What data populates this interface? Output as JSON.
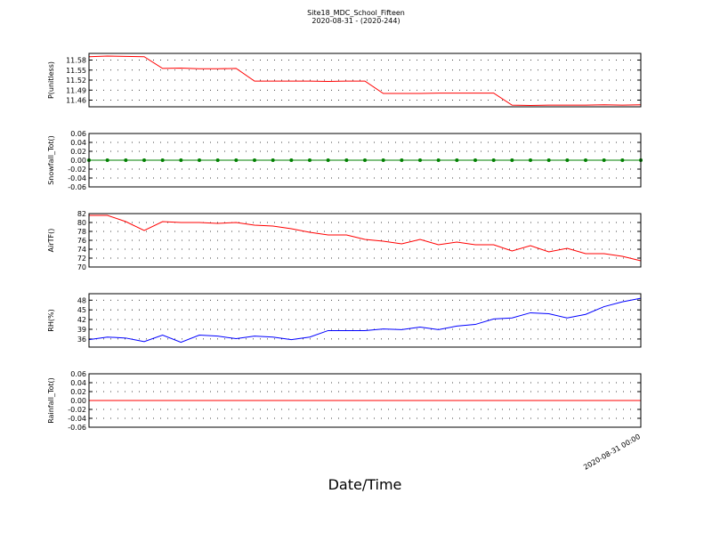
{
  "title": "Site18_MDC_School_Fifteen",
  "subtitle": "2020-08-31 - (2020-244)",
  "xlabel": "Date/Time",
  "chart_data": [
    {
      "type": "line",
      "ylabel": "P(unitless)",
      "color": "#ff0000",
      "grid": true,
      "x": [
        0,
        1,
        2,
        3,
        4,
        5,
        6,
        7,
        8,
        9,
        10,
        11,
        12,
        13,
        14,
        15,
        16,
        17,
        18,
        19,
        20,
        21,
        22,
        23,
        24,
        25,
        26,
        27,
        28,
        29,
        30
      ],
      "xlim": [
        0,
        30
      ],
      "values": [
        11.59,
        11.592,
        11.591,
        11.59,
        11.555,
        11.556,
        11.554,
        11.554,
        11.555,
        11.517,
        11.517,
        11.517,
        11.517,
        11.516,
        11.517,
        11.517,
        11.48,
        11.48,
        11.48,
        11.481,
        11.481,
        11.481,
        11.481,
        11.445,
        11.444,
        11.445,
        11.445,
        11.445,
        11.446,
        11.445,
        11.446
      ],
      "ylim": [
        11.44,
        11.6
      ],
      "yticks": [
        11.46,
        11.49,
        11.52,
        11.55,
        11.58
      ]
    },
    {
      "type": "line",
      "ylabel": "Snowfall_Tot()",
      "color": "#008000",
      "grid": true,
      "markers": true,
      "x": [
        0,
        1,
        2,
        3,
        4,
        5,
        6,
        7,
        8,
        9,
        10,
        11,
        12,
        13,
        14,
        15,
        16,
        17,
        18,
        19,
        20,
        21,
        22,
        23,
        24,
        25,
        26,
        27,
        28,
        29,
        30
      ],
      "xlim": [
        0,
        30
      ],
      "values": [
        0,
        0,
        0,
        0,
        0,
        0,
        0,
        0,
        0,
        0,
        0,
        0,
        0,
        0,
        0,
        0,
        0,
        0,
        0,
        0,
        0,
        0,
        0,
        0,
        0,
        0,
        0,
        0,
        0,
        0,
        0
      ],
      "ylim": [
        -0.06,
        0.06
      ],
      "yticks": [
        -0.06,
        -0.04,
        -0.02,
        {
          "value": 0,
          "label": "0.00"
        },
        0.02,
        0.04,
        0.06
      ]
    },
    {
      "type": "line",
      "ylabel": "AirTF()",
      "color": "#ff0000",
      "grid": true,
      "x": [
        0,
        1,
        2,
        3,
        4,
        5,
        6,
        7,
        8,
        9,
        10,
        11,
        12,
        13,
        14,
        15,
        16,
        17,
        18,
        19,
        20,
        21,
        22,
        23,
        24,
        25,
        26,
        27,
        28,
        29,
        30
      ],
      "xlim": [
        0,
        30
      ],
      "values": [
        81.6,
        81.6,
        80.2,
        78.2,
        80.2,
        80.0,
        80.0,
        79.8,
        80.0,
        79.4,
        79.2,
        78.6,
        77.8,
        77.2,
        77.2,
        76.2,
        75.8,
        75.2,
        76.2,
        75.0,
        75.6,
        75.0,
        75.0,
        73.6,
        74.8,
        73.4,
        74.2,
        73.0,
        73.0,
        72.4,
        71.4
      ],
      "ylim": [
        70,
        82
      ],
      "yticks": [
        70,
        72,
        74,
        76,
        78,
        80,
        82
      ]
    },
    {
      "type": "line",
      "ylabel": "RH(%)",
      "color": "#0000ff",
      "grid": true,
      "x": [
        0,
        1,
        2,
        3,
        4,
        5,
        6,
        7,
        8,
        9,
        10,
        11,
        12,
        13,
        14,
        15,
        16,
        17,
        18,
        19,
        20,
        21,
        22,
        23,
        24,
        25,
        26,
        27,
        28,
        29,
        30
      ],
      "xlim": [
        0,
        30
      ],
      "values": [
        35.8,
        36.6,
        36.3,
        35.2,
        37.2,
        35.0,
        37.2,
        36.9,
        36.1,
        36.9,
        36.6,
        35.8,
        36.6,
        38.6,
        38.6,
        38.6,
        39.1,
        38.9,
        39.7,
        38.9,
        40.0,
        40.5,
        42.2,
        42.5,
        44.1,
        43.8,
        42.5,
        43.6,
        46.0,
        47.5,
        48.6
      ],
      "ylim": [
        33.5,
        50
      ],
      "yticks": [
        36,
        39,
        42,
        45,
        48
      ]
    },
    {
      "type": "line",
      "ylabel": "Rainfall_Tot()",
      "color": "#ff0000",
      "grid": true,
      "x": [
        0,
        1,
        2,
        3,
        4,
        5,
        6,
        7,
        8,
        9,
        10,
        11,
        12,
        13,
        14,
        15,
        16,
        17,
        18,
        19,
        20,
        21,
        22,
        23,
        24,
        25,
        26,
        27,
        28,
        29,
        30
      ],
      "xlim": [
        0,
        30
      ],
      "values": [
        0,
        0,
        0,
        0,
        0,
        0,
        0,
        0,
        0,
        0,
        0,
        0,
        0,
        0,
        0,
        0,
        0,
        0,
        0,
        0,
        0,
        0,
        0,
        0,
        0,
        0,
        0,
        0,
        0,
        0,
        0
      ],
      "ylim": [
        -0.06,
        0.06
      ],
      "yticks": [
        -0.06,
        -0.04,
        -0.02,
        {
          "value": 0,
          "label": "0.00"
        },
        0.02,
        0.04,
        0.06
      ],
      "xticks": [
        {
          "value": 30,
          "label": "2020-08-31 00:00"
        }
      ]
    }
  ]
}
